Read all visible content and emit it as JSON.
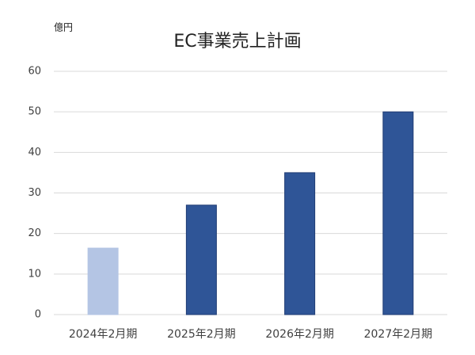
{
  "chart_data": {
    "type": "bar",
    "title": "EC事業売上計画",
    "y_unit": "億円",
    "categories": [
      "2024年2月期",
      "2025年2月期",
      "2026年2月期",
      "2027年2月期"
    ],
    "values": [
      16.4,
      27,
      35,
      50
    ],
    "colors": [
      "#b4c5e4",
      "#2f5597",
      "#2f5597",
      "#2f5597"
    ],
    "edgecolors": [
      "#b4c5e4",
      "#1f3b73",
      "#1f3b73",
      "#1f3b73"
    ],
    "ylim": [
      0,
      60
    ],
    "yticks": [
      0,
      10,
      20,
      30,
      40,
      50,
      60
    ],
    "grid": true
  }
}
